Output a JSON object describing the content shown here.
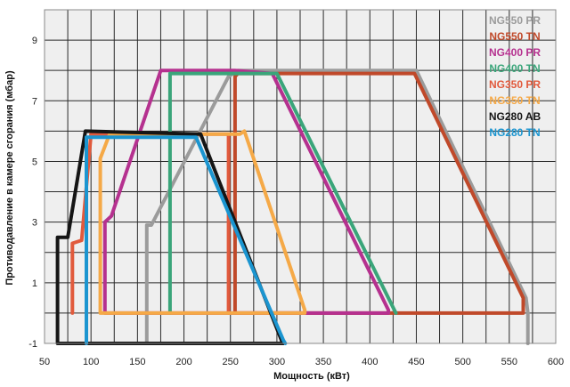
{
  "chart_data": {
    "type": "line",
    "xlabel": "Мощность  (кВт)",
    "ylabel": "Противодавление в камере сгорания (мбар)",
    "xlim": [
      50,
      600
    ],
    "ylim": [
      -1,
      10
    ],
    "x_ticks": [
      50,
      100,
      150,
      200,
      250,
      300,
      350,
      400,
      450,
      500,
      550,
      600
    ],
    "y_ticks": [
      -1,
      1,
      3,
      5,
      7,
      9
    ],
    "grid": true,
    "legend_position": "top-right",
    "series": [
      {
        "name": "NG550 PR",
        "color": "#9b9b9b",
        "x": [
          160,
          160,
          165,
          248,
          258,
          450,
          568,
          570,
          570
        ],
        "y": [
          -1,
          2.9,
          2.9,
          7.8,
          8,
          8,
          0.5,
          0,
          -1
        ]
      },
      {
        "name": "NG550 TN",
        "color": "#c0492a",
        "x": [
          255,
          255,
          258,
          448,
          565,
          565,
          255
        ],
        "y": [
          0,
          7.8,
          7.9,
          7.9,
          0.5,
          0,
          0
        ]
      },
      {
        "name": "NG400 PR",
        "color": "#b5318f",
        "x": [
          115,
          115,
          122,
          175,
          255,
          295,
          420,
          420,
          115
        ],
        "y": [
          0,
          3,
          3.2,
          8,
          8,
          7.9,
          0.1,
          0,
          0
        ]
      },
      {
        "name": "NG400 TN",
        "color": "#3aa57a",
        "x": [
          185,
          185,
          300,
          428
        ],
        "y": [
          0,
          7.9,
          7.9,
          0
        ]
      },
      {
        "name": "NG350 PR",
        "color": "#e15a3c",
        "x": [
          80,
          80,
          90,
          100,
          248,
          248
        ],
        "y": [
          0,
          2.3,
          2.4,
          5.9,
          5.9,
          0
        ]
      },
      {
        "name": "NG350 TN",
        "color": "#f5a947",
        "x": [
          110,
          110,
          120,
          260,
          265,
          330,
          330,
          110
        ],
        "y": [
          0,
          5.1,
          5.9,
          5.9,
          6,
          0.1,
          0,
          0
        ]
      },
      {
        "name": "NG280 AB",
        "color": "#151515",
        "x": [
          64,
          64,
          75,
          94,
          218,
          305,
          307,
          64
        ],
        "y": [
          -1,
          2.5,
          2.5,
          6,
          5.9,
          -0.9,
          -1,
          -1
        ]
      },
      {
        "name": "NG280 TN",
        "color": "#1b95d0",
        "x": [
          95,
          95,
          100,
          213,
          307,
          309
        ],
        "y": [
          -1,
          5.8,
          5.8,
          5.8,
          -0.9,
          -1
        ]
      }
    ]
  }
}
